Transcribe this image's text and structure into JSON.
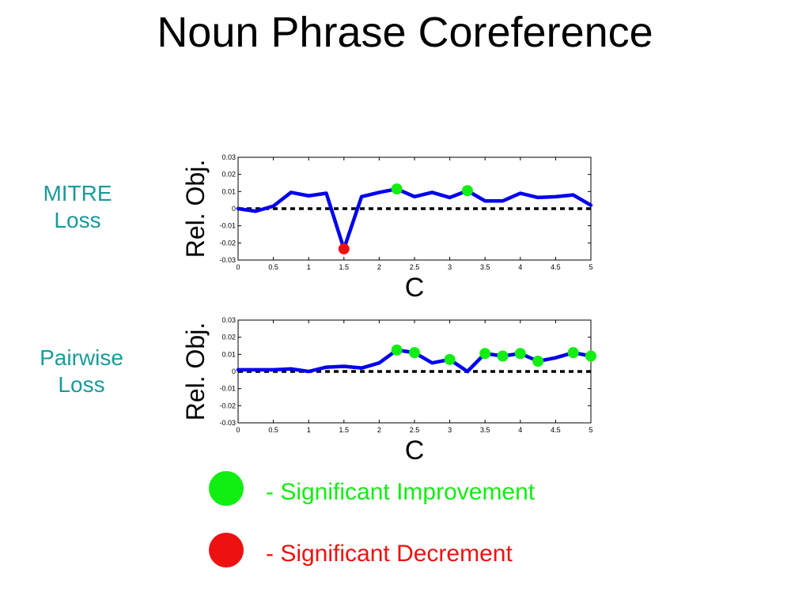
{
  "slide": {
    "title": "Noun Phrase Coreference"
  },
  "colors": {
    "teal": "#1a9a9a",
    "line": "#0000ee",
    "improve": "#11ee11",
    "decrement": "#ee1111",
    "baseline": "#000000"
  },
  "rows": [
    {
      "label_lines": [
        "MITRE",
        "Loss"
      ]
    },
    {
      "label_lines": [
        "Pairwise",
        "Loss"
      ]
    }
  ],
  "legend": {
    "improvement": "- Significant Improvement",
    "decrement": "- Significant Decrement"
  },
  "chart_data": [
    {
      "type": "line",
      "xlabel": "C",
      "ylabel": "Rel. Obj.",
      "xlim": [
        0,
        5
      ],
      "ylim": [
        -0.03,
        0.03
      ],
      "xticks": [
        "0",
        "0.5",
        "1",
        "1.5",
        "2",
        "2.5",
        "3",
        "3.5",
        "4",
        "4.5",
        "5"
      ],
      "yticks": [
        "0.03",
        "0.02",
        "0.01",
        "0",
        "-0.01",
        "-0.02",
        "-0.03"
      ],
      "series": [
        {
          "x": [
            0,
            0.25,
            0.5,
            0.75,
            1,
            1.25,
            1.5,
            1.75,
            2,
            2.25,
            2.5,
            2.75,
            3,
            3.25,
            3.5,
            3.75,
            4,
            4.25,
            4.5,
            4.75,
            5
          ],
          "y": [
            0,
            -0.0015,
            0.0015,
            0.0095,
            0.0075,
            0.009,
            -0.0235,
            0.007,
            0.0095,
            0.0115,
            0.007,
            0.0095,
            0.0065,
            0.0105,
            0.0045,
            0.0045,
            0.009,
            0.0065,
            0.007,
            0.008,
            0.002
          ]
        }
      ],
      "baseline": 0,
      "improvement_points": [
        [
          2.25,
          0.0115
        ],
        [
          3.25,
          0.0105
        ]
      ],
      "decrement_points": [
        [
          1.5,
          -0.0235
        ]
      ]
    },
    {
      "type": "line",
      "xlabel": "C",
      "ylabel": "Rel. Obj.",
      "xlim": [
        0,
        5
      ],
      "ylim": [
        -0.03,
        0.03
      ],
      "xticks": [
        "0",
        "0.5",
        "1",
        "1.5",
        "2",
        "2.5",
        "3",
        "3.5",
        "4",
        "4.5",
        "5"
      ],
      "yticks": [
        "0.03",
        "0.02",
        "0.01",
        "0",
        "-0.01",
        "-0.02",
        "-0.03"
      ],
      "series": [
        {
          "x": [
            0,
            0.25,
            0.5,
            0.75,
            1,
            1.25,
            1.5,
            1.75,
            2,
            2.25,
            2.5,
            2.75,
            3,
            3.25,
            3.5,
            3.75,
            4,
            4.25,
            4.5,
            4.75,
            5
          ],
          "y": [
            0.001,
            0.001,
            0.001,
            0.0015,
            0,
            0.0025,
            0.003,
            0.002,
            0.005,
            0.0125,
            0.011,
            0.005,
            0.007,
            0,
            0.0105,
            0.009,
            0.0105,
            0.006,
            0.008,
            0.011,
            0.009
          ]
        }
      ],
      "baseline": 0,
      "improvement_points": [
        [
          2.25,
          0.0125
        ],
        [
          2.5,
          0.011
        ],
        [
          3,
          0.007
        ],
        [
          3.5,
          0.0105
        ],
        [
          3.75,
          0.009
        ],
        [
          4,
          0.0105
        ],
        [
          4.25,
          0.006
        ],
        [
          4.75,
          0.011
        ],
        [
          5,
          0.009
        ]
      ],
      "decrement_points": []
    }
  ]
}
